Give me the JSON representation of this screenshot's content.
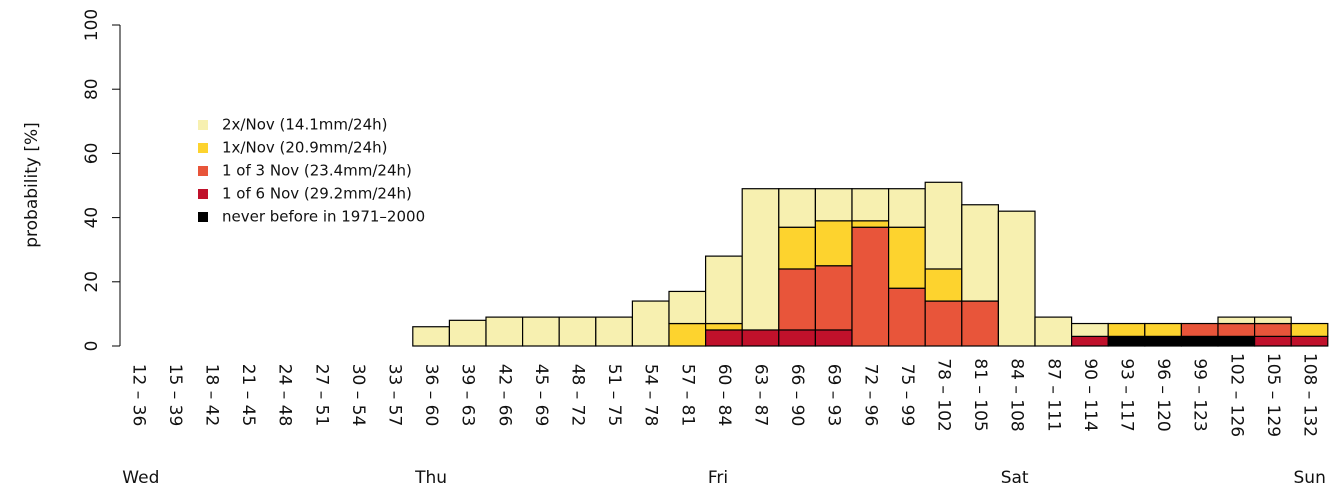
{
  "chart_data": {
    "type": "stacked-bar",
    "y_label": "probability [%]",
    "categories": [
      "12 – 36",
      "15 – 39",
      "18 – 42",
      "21 – 45",
      "24 – 48",
      "27 – 51",
      "30 – 54",
      "33 – 57",
      "36 – 60",
      "39 – 63",
      "42 – 66",
      "45 – 69",
      "48 – 72",
      "51 – 75",
      "54 – 78",
      "57 – 81",
      "60 – 84",
      "63 – 87",
      "66 – 90",
      "69 – 93",
      "72 – 96",
      "75 – 99",
      "78 – 102",
      "81 – 105",
      "84 – 108",
      "87 – 111",
      "90 – 114",
      "93 – 117",
      "96 – 120",
      "99 – 123",
      "102 – 126",
      "105 – 129",
      "108 – 132"
    ],
    "day_labels": [
      "Wed",
      null,
      null,
      null,
      null,
      null,
      null,
      null,
      "Thu",
      null,
      null,
      null,
      null,
      null,
      null,
      null,
      "Fri",
      null,
      null,
      null,
      null,
      null,
      null,
      null,
      "Sat",
      null,
      null,
      null,
      null,
      null,
      null,
      null,
      "Sun"
    ],
    "series": [
      {
        "name": "never before in 1971–2000",
        "color": "#000000",
        "values": [
          0,
          0,
          0,
          0,
          0,
          0,
          0,
          0,
          0,
          0,
          0,
          0,
          0,
          0,
          0,
          0,
          0,
          0,
          0,
          0,
          0,
          0,
          0,
          0,
          0,
          0,
          0,
          3,
          3,
          3,
          3,
          0,
          0
        ]
      },
      {
        "name": "1 of 6 Nov (29.2mm/24h)",
        "color": "#c0112b",
        "values": [
          0,
          0,
          0,
          0,
          0,
          0,
          0,
          0,
          0,
          0,
          0,
          0,
          0,
          0,
          0,
          0,
          5,
          5,
          5,
          5,
          0,
          0,
          0,
          0,
          0,
          0,
          3,
          0,
          0,
          0,
          0,
          3,
          3
        ]
      },
      {
        "name": "1 of 3 Nov (23.4mm/24h)",
        "color": "#e8553a",
        "values": [
          0,
          0,
          0,
          0,
          0,
          0,
          0,
          0,
          0,
          0,
          0,
          0,
          0,
          0,
          0,
          0,
          0,
          0,
          19,
          20,
          37,
          18,
          14,
          14,
          0,
          0,
          0,
          0,
          0,
          4,
          4,
          4,
          0
        ]
      },
      {
        "name": "1x/Nov (20.9mm/24h)",
        "color": "#fdd32e",
        "values": [
          0,
          0,
          0,
          0,
          0,
          0,
          0,
          0,
          0,
          0,
          0,
          0,
          0,
          0,
          0,
          7,
          2,
          0,
          13,
          14,
          2,
          19,
          10,
          0,
          0,
          0,
          0,
          4,
          4,
          0,
          0,
          0,
          4
        ]
      },
      {
        "name": "2x/Nov (14.1mm/24h)",
        "color": "#f7f0b0",
        "values": [
          0,
          0,
          0,
          0,
          0,
          0,
          0,
          0,
          6,
          8,
          9,
          9,
          9,
          9,
          14,
          10,
          21,
          44,
          12,
          10,
          10,
          12,
          27,
          30,
          42,
          9,
          4,
          0,
          0,
          0,
          2,
          2,
          0
        ]
      }
    ],
    "ylim": [
      0,
      100
    ],
    "yticks": [
      0,
      20,
      40,
      60,
      80,
      100
    ]
  }
}
